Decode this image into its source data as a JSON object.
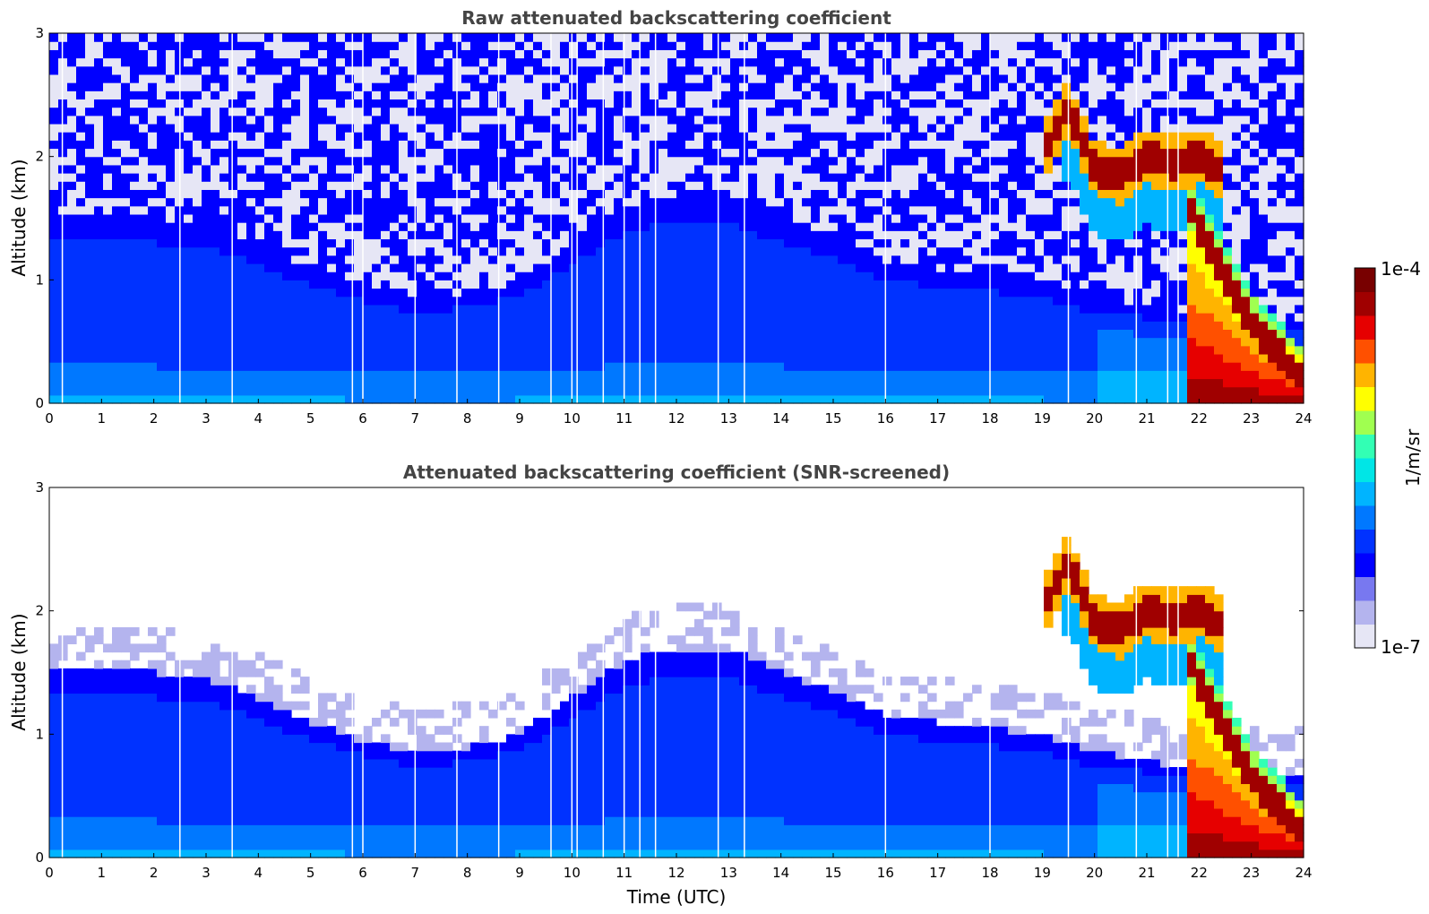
{
  "chart_data": [
    {
      "type": "heatmap",
      "title": "Raw attenuated backscattering coefficient",
      "xlabel": "",
      "ylabel": "Altitude (km)",
      "xlim": [
        0,
        24
      ],
      "ylim": [
        0,
        3
      ],
      "x_ticks": [
        "0",
        "1",
        "2",
        "3",
        "4",
        "5",
        "6",
        "7",
        "8",
        "9",
        "10",
        "11",
        "12",
        "13",
        "14",
        "15",
        "16",
        "17",
        "18",
        "19",
        "20",
        "21",
        "22",
        "23",
        "24"
      ],
      "y_ticks": [
        "0",
        "1",
        "2",
        "3"
      ],
      "screening": "raw"
    },
    {
      "type": "heatmap",
      "title": "Attenuated backscattering coefficient (SNR-screened)",
      "xlabel": "Time (UTC)",
      "ylabel": "Altitude (km)",
      "xlim": [
        0,
        24
      ],
      "ylim": [
        0,
        3
      ],
      "x_ticks": [
        "0",
        "1",
        "2",
        "3",
        "4",
        "5",
        "6",
        "7",
        "8",
        "9",
        "10",
        "11",
        "12",
        "13",
        "14",
        "15",
        "16",
        "17",
        "18",
        "19",
        "20",
        "21",
        "22",
        "23",
        "24"
      ],
      "y_ticks": [
        "0",
        "1",
        "2",
        "3"
      ],
      "screening": "snr"
    }
  ],
  "features": {
    "boundary_layer_top_km": [
      [
        0,
        1.5
      ],
      [
        1,
        1.55
      ],
      [
        2,
        1.5
      ],
      [
        3,
        1.45
      ],
      [
        4,
        1.3
      ],
      [
        5,
        1.1
      ],
      [
        6,
        0.95
      ],
      [
        7,
        0.85
      ],
      [
        8,
        0.9
      ],
      [
        9,
        1.0
      ],
      [
        10,
        1.3
      ],
      [
        11,
        1.6
      ],
      [
        12,
        1.7
      ],
      [
        13,
        1.7
      ],
      [
        14,
        1.5
      ],
      [
        15,
        1.35
      ],
      [
        16,
        1.15
      ],
      [
        17,
        1.1
      ],
      [
        18,
        1.05
      ],
      [
        19,
        1.0
      ],
      [
        20,
        0.85
      ],
      [
        21,
        0.8
      ],
      [
        22,
        0.7
      ]
    ],
    "cloud_layer_km": [
      [
        19.0,
        2.0
      ],
      [
        19.5,
        2.4
      ],
      [
        20.0,
        1.9
      ],
      [
        20.5,
        1.85
      ],
      [
        21.0,
        2.0
      ],
      [
        21.5,
        1.95
      ],
      [
        22.0,
        2.0
      ],
      [
        22.4,
        1.9
      ]
    ],
    "descending_band_km": [
      [
        21.8,
        1.6
      ],
      [
        22.3,
        1.2
      ],
      [
        22.8,
        0.8
      ],
      [
        23.3,
        0.5
      ],
      [
        24.0,
        0.2
      ]
    ],
    "missing_profiles_utc": [
      0.25,
      2.5,
      3.5,
      5.8,
      6.0,
      7.0,
      7.8,
      8.6,
      9.6,
      10.0,
      10.1,
      10.6,
      11.0,
      11.3,
      11.6,
      12.8,
      13.3,
      16.0,
      18.0,
      19.5,
      20.8,
      21.4,
      21.6
    ]
  },
  "colorbar": {
    "min_label": "1e-7",
    "max_label": "1e-4",
    "unit_label": "1/m/sr",
    "colors": [
      "#e6e6f5",
      "#b4b4ee",
      "#7878f0",
      "#0000ff",
      "#0032ff",
      "#0078ff",
      "#00b4ff",
      "#00e6e6",
      "#32ffb4",
      "#a0ff50",
      "#ffff00",
      "#ffb400",
      "#ff5000",
      "#e60000",
      "#a00000",
      "#780000"
    ]
  }
}
